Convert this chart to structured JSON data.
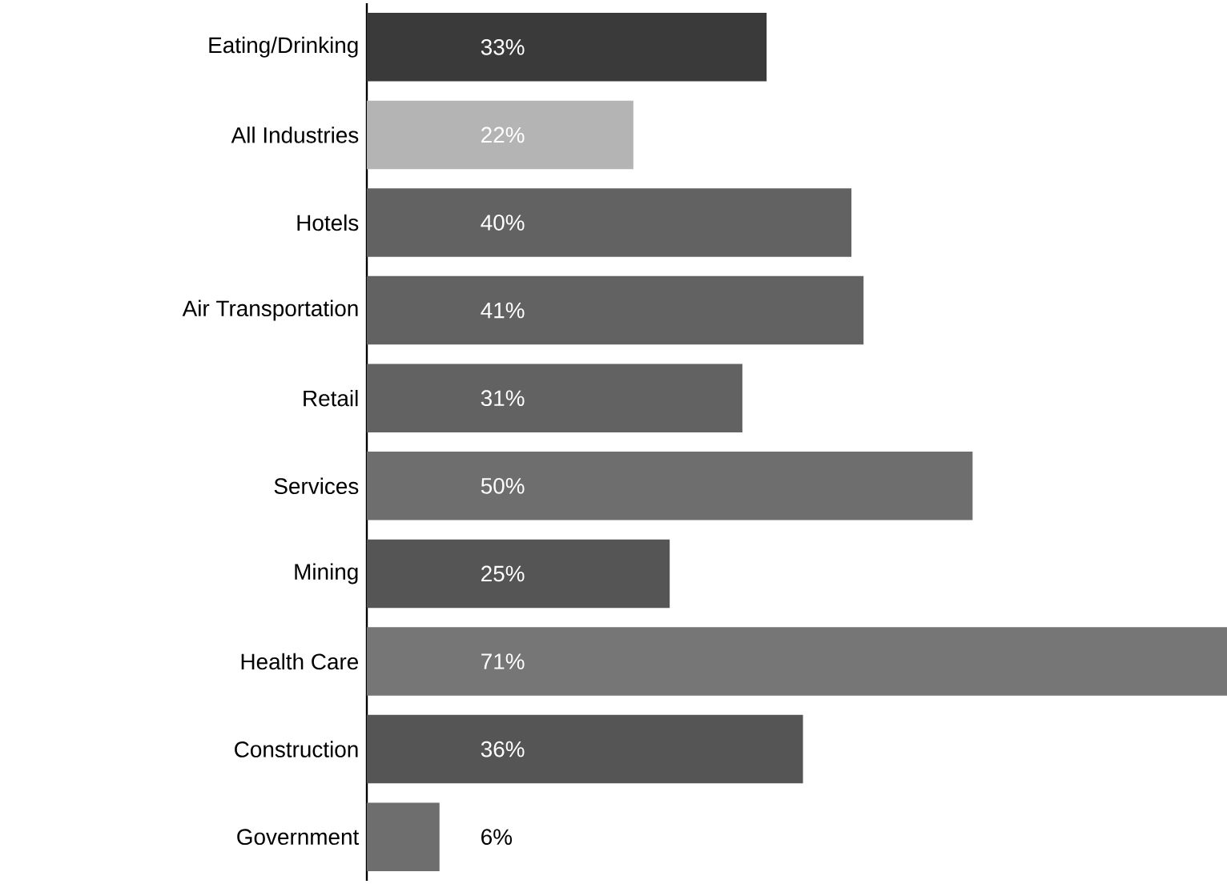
{
  "chart_data": {
    "type": "bar",
    "orientation": "horizontal",
    "categories": [
      "Eating/Drinking",
      "All Industries",
      "Hotels",
      "Air Transportation",
      "Retail",
      "Services",
      "Mining",
      "Health Care",
      "Construction",
      "Government"
    ],
    "values": [
      33,
      22,
      40,
      41,
      31,
      50,
      25,
      71,
      36,
      6
    ],
    "value_labels": [
      "33%",
      "22%",
      "40%",
      "41%",
      "31%",
      "50%",
      "25%",
      "71%",
      "36%",
      "6%"
    ],
    "colors": [
      "#3a3a3a",
      "#b4b4b4",
      "#626262",
      "#626262",
      "#626262",
      "#6e6e6e",
      "#555555",
      "#767676",
      "#555555",
      "#6e6e6e"
    ],
    "xlim": [
      0,
      71
    ]
  }
}
